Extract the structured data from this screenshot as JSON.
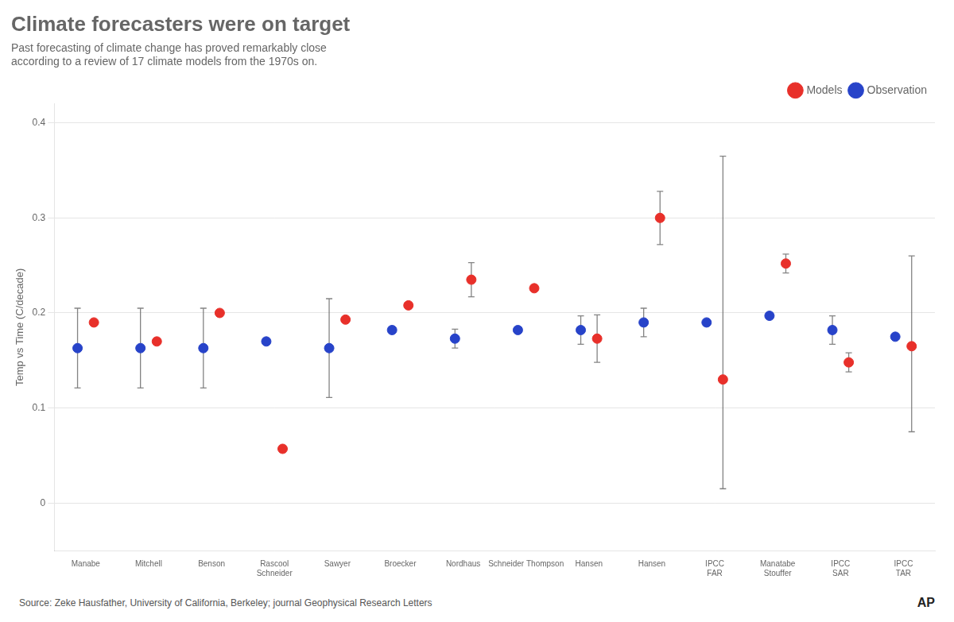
{
  "chart_data": {
    "type": "scatter",
    "title": "Climate forecasters were on target",
    "subtitle": "Past forecasting of climate change has proved remarkably close\naccording to a review of 17 climate models from the 1970s on.",
    "ylabel": "Temp vs Time (C/decade)",
    "source": "Source: Zeke Hausfather, University of California, Berkeley;  journal Geophysical Research Letters",
    "credit": "AP",
    "categories": [
      "Manabe",
      "Mitchell",
      "Benson",
      "Rascool\nSchneider",
      "Sawyer",
      "Broecker",
      "Nordhaus",
      "Schneider Thompson",
      "Hansen",
      "Hansen",
      "IPCC\nFAR",
      "Manatabe\nStouffer",
      "IPCC\nSAR",
      "IPCC\nTAR"
    ],
    "series": [
      {
        "name": "Models",
        "color": "#e8302a",
        "values": [
          0.19,
          0.17,
          0.2,
          0.057,
          0.193,
          0.208,
          0.235,
          0.226,
          0.173,
          0.3,
          0.13,
          0.252,
          0.148,
          0.165
        ],
        "error_low": [
          0.0,
          0.0,
          0.0,
          0.0,
          0.0,
          0.0,
          0.018,
          0.0,
          0.025,
          0.028,
          0.115,
          0.01,
          0.01,
          0.09
        ],
        "error_high": [
          0.0,
          0.0,
          0.0,
          0.0,
          0.0,
          0.0,
          0.018,
          0.0,
          0.025,
          0.028,
          0.235,
          0.01,
          0.01,
          0.095
        ]
      },
      {
        "name": "Observation",
        "color": "#2743c9",
        "values": [
          0.163,
          0.163,
          0.163,
          0.17,
          0.163,
          0.182,
          0.173,
          0.182,
          0.182,
          0.19,
          0.19,
          0.197,
          0.182,
          0.175
        ],
        "error_low": [
          0.042,
          0.042,
          0.042,
          0.0,
          0.052,
          0.0,
          0.01,
          0.0,
          0.015,
          0.015,
          0.0,
          0.0,
          0.015,
          0.0
        ],
        "error_high": [
          0.042,
          0.042,
          0.042,
          0.0,
          0.052,
          0.0,
          0.01,
          0.0,
          0.015,
          0.015,
          0.0,
          0.0,
          0.015,
          0.0
        ]
      }
    ],
    "ylim": [
      -0.05,
      0.42
    ],
    "yticks": [
      0,
      0.1,
      0.2,
      0.3,
      0.4
    ],
    "grid": true,
    "legend": "upper right"
  }
}
